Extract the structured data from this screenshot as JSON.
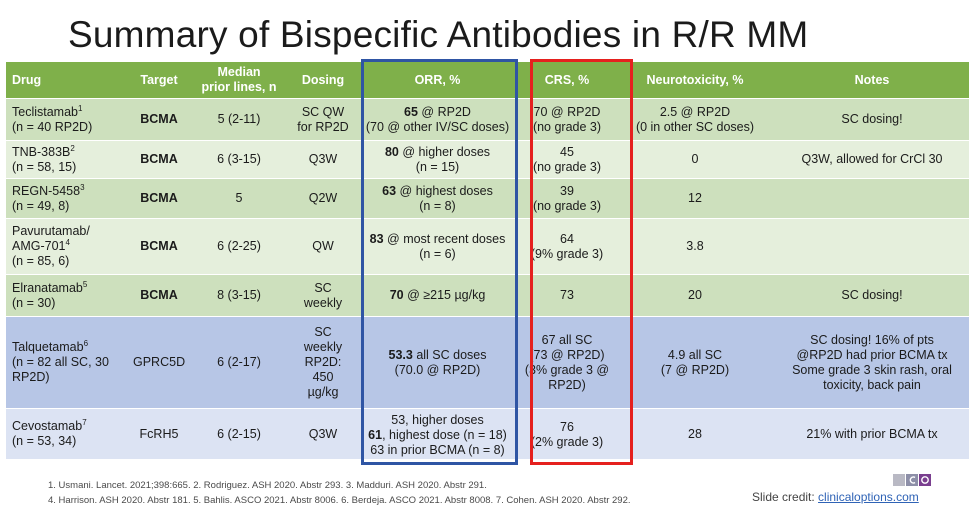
{
  "title": "Summary of Bispecific Antibodies in R/R MM",
  "headers": {
    "drug": "Drug",
    "target": "Target",
    "lines1": "Median",
    "lines2": "prior lines, n",
    "dosing": "Dosing",
    "orr": "ORR, %",
    "crs": "CRS, %",
    "neuro": "Neurotoxicity, %",
    "notes": "Notes"
  },
  "rows": [
    {
      "drug_name": "Teclistamab",
      "drug_sup": "1",
      "drug_n": "(n = 40 RP2D)",
      "target": "BCMA",
      "lines": "5 (2-11)",
      "dosing1": "SC QW",
      "dosing2": "for RP2D",
      "orr_bold": "65",
      "orr_rest": " @ RP2D",
      "orr_line2": "(70 @ other IV/SC doses)",
      "crs1": "70 @ RP2D",
      "crs2": "(no grade 3)",
      "neuro1": "2.5 @ RP2D",
      "neuro2": "(0 in other SC doses)",
      "notes": "SC dosing!"
    },
    {
      "drug_name": "TNB-383B",
      "drug_sup": "2",
      "drug_n": "(n = 58, 15)",
      "target": "BCMA",
      "lines": "6 (3-15)",
      "dosing": "Q3W",
      "orr_bold": "80",
      "orr_rest": " @ higher doses",
      "orr_line2": "(n = 15)",
      "crs1": "45",
      "crs2": "(no grade 3)",
      "neuro": "0",
      "notes": "Q3W, allowed for CrCl 30"
    },
    {
      "drug_name": "REGN-5458",
      "drug_sup": "3",
      "drug_n": "(n = 49, 8)",
      "target": "BCMA",
      "lines": "5",
      "dosing": "Q2W",
      "orr_bold": "63",
      "orr_rest": " @ highest doses",
      "orr_line2": "(n = 8)",
      "crs1": "39",
      "crs2": "(no grade 3)",
      "neuro": "12",
      "notes": ""
    },
    {
      "drug_name1": "Pavurutamab/",
      "drug_name2": "AMG-701",
      "drug_sup": "4",
      "drug_n": "(n = 85, 6)",
      "target": "BCMA",
      "lines": "6 (2-25)",
      "dosing": "QW",
      "orr_bold": "83",
      "orr_rest": " @ most recent doses",
      "orr_line2": "(n = 6)",
      "crs1": "64",
      "crs2": "(9% grade 3)",
      "neuro": "3.8",
      "notes": ""
    },
    {
      "drug_name": "Elranatamab",
      "drug_sup": "5",
      "drug_n": "(n = 30)",
      "target": "BCMA",
      "lines": "8 (3-15)",
      "dosing1": "SC",
      "dosing2": "weekly",
      "orr_bold": "70",
      "orr_rest": " @ ≥215 µg/kg",
      "crs": "73",
      "neuro": "20",
      "notes": "SC dosing!"
    },
    {
      "drug_name": "Talquetamab",
      "drug_sup": "6",
      "drug_n1": "(n = 82 all SC, 30",
      "drug_n2": "RP2D)",
      "target": "GPRC5D",
      "lines": "6 (2-17)",
      "dosing": [
        "SC",
        "weekly",
        "RP2D:",
        "450",
        "µg/kg"
      ],
      "orr_bold": "53.3",
      "orr_rest": " all SC doses",
      "orr_line2": "(70.0 @ RP2D)",
      "crs": [
        "67 all SC",
        "(73 @ RP2D)",
        "(3% grade 3 @",
        "RP2D)"
      ],
      "neuro1": "4.9 all SC",
      "neuro2": "(7 @ RP2D)",
      "notes": [
        "SC dosing! 16% of pts",
        "@RP2D had prior BCMA tx",
        "Some grade 3 skin rash, oral",
        "toxicity, back pain"
      ]
    },
    {
      "drug_name": "Cevostamab",
      "drug_sup": "7",
      "drug_n": "(n = 53, 34)",
      "target": "FcRH5",
      "lines": "6 (2-15)",
      "dosing": "Q3W",
      "orr_line1": "53, higher doses",
      "orr_bold": "61",
      "orr_rest": ", highest dose (n = 18)",
      "orr_line3": "63 in prior BCMA (n = 8)",
      "crs1": "76",
      "crs2": "(2% grade 3)",
      "neuro": "28",
      "notes": "21% with prior BCMA tx"
    }
  ],
  "references": {
    "line1": "1. Usmani. Lancet. 2021;398:665. 2. Rodriguez. ASH 2020. Abstr 293. 3. Madduri. ASH 2020. Abstr 291.",
    "line2": "4. Harrison. ASH 2020. Abstr 181. 5. Bahlis. ASCO 2021. Abstr 8006. 6. Berdeja. ASCO 2021. Abstr 8008. 7. Cohen. ASH 2020. Abstr 292."
  },
  "credit": {
    "label": "Slide credit: ",
    "link": "clinicaloptions.com"
  },
  "colors": {
    "header_green": "#7fb04a",
    "row_green_dark": "#cde0bd",
    "row_green_light": "#e5efdc",
    "row_blue_dark": "#b7c6e6",
    "row_blue_light": "#dce3f3",
    "highlight_blue_box": "#2f55a4",
    "highlight_red_box": "#e5201e"
  },
  "icons": {
    "logo": "cco-logo"
  }
}
